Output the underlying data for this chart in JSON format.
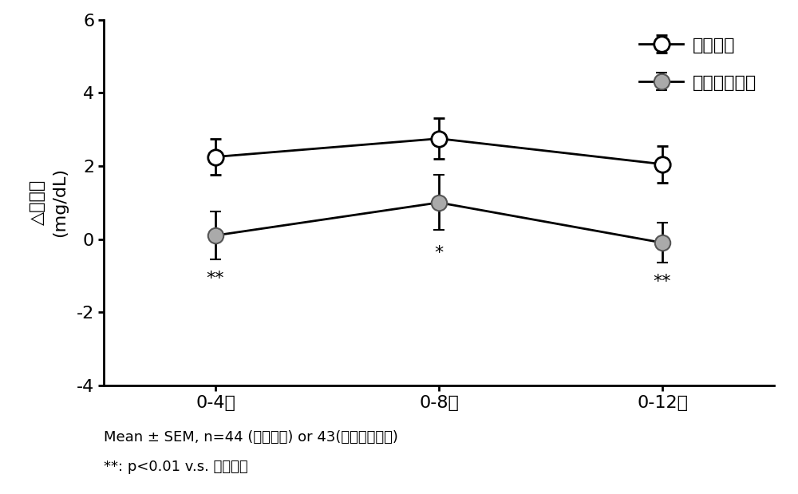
{
  "x_positions": [
    0,
    1,
    2
  ],
  "x_labels": [
    "0-4周",
    "0-8周",
    "0-12周"
  ],
  "placebo_means": [
    2.25,
    2.75,
    2.05
  ],
  "placebo_errors": [
    0.5,
    0.55,
    0.5
  ],
  "turmeric_means": [
    0.1,
    1.0,
    -0.1
  ],
  "turmeric_errors": [
    0.65,
    0.75,
    0.55
  ],
  "ylim": [
    -4,
    6
  ],
  "yticks": [
    -4,
    -2,
    0,
    2,
    4,
    6
  ],
  "ylabel_line1": "△葡萄糖",
  "ylabel_line2": "(mg/dL)",
  "legend_placebo": "安慰剂组",
  "legend_turmeric": "姜黄提取物组",
  "annotation_4w": "**",
  "annotation_8w": "*",
  "annotation_12w": "**",
  "footnote1": "Mean ± SEM, n=44 (安慰剂组) or 43(姜黄提取物组)",
  "footnote2": "**: p<0.01 v.s. 安慰剂组",
  "bg_color": "#ffffff",
  "placebo_color": "#000000",
  "line_color": "#000000"
}
